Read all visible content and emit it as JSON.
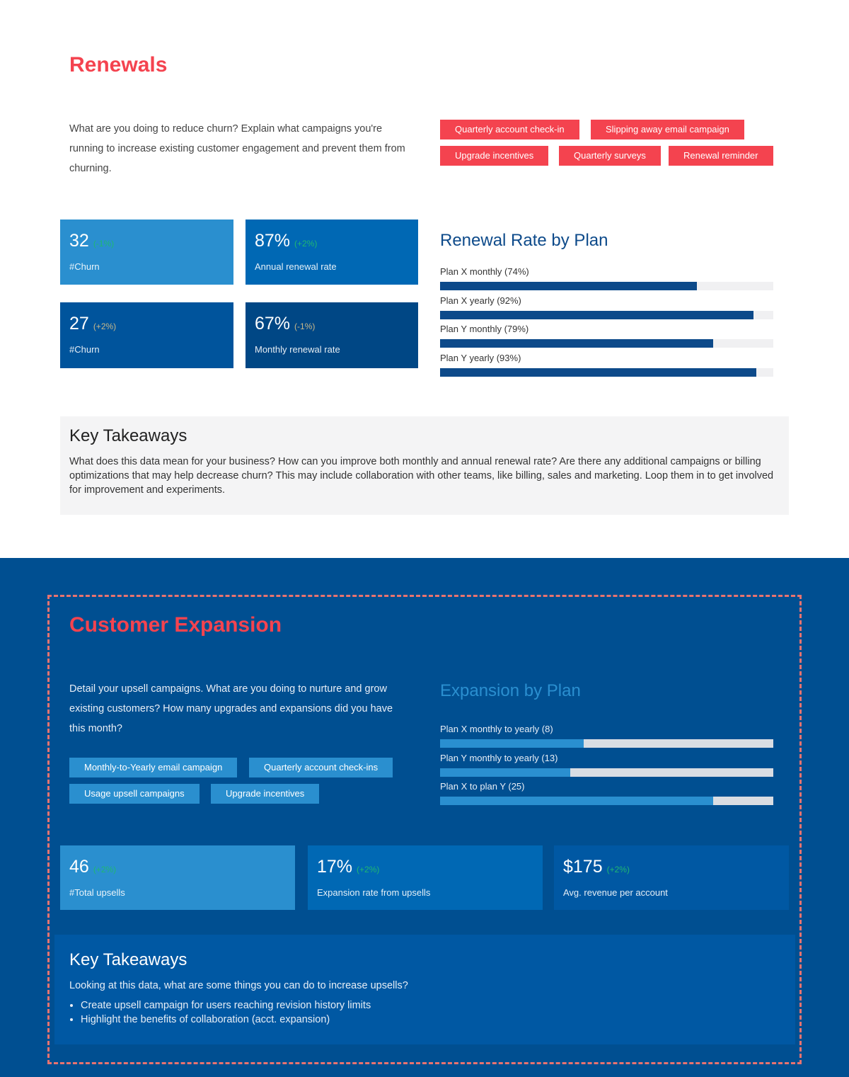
{
  "renewals": {
    "title": "Renewals",
    "intro": "What are you doing to reduce churn? Explain what campaigns you're running to increase existing customer engagement and prevent them from churning.",
    "tags": [
      "Quarterly account check-in",
      "Slipping away email campaign",
      "Upgrade incentives",
      "Quarterly surveys",
      "Renewal reminder"
    ],
    "cards": [
      {
        "value": "32",
        "delta": "(-1%)",
        "label": "#Churn",
        "color": "#2a8fcf",
        "delta_color": "#1fb872"
      },
      {
        "value": "87%",
        "delta": "(+2%)",
        "label": "Annual renewal rate",
        "color": "#0068b4",
        "delta_color": "#1fb872"
      },
      {
        "value": "27",
        "delta": "(+2%)",
        "label": "#Churn",
        "color": "#00549c",
        "delta_color": "#c9b98a"
      },
      {
        "value": "67%",
        "delta": "(-1%)",
        "label": "Monthly renewal rate",
        "color": "#004785",
        "delta_color": "#c9b98a"
      }
    ],
    "chart": {
      "title": "Renewal Rate by Plan",
      "bars": [
        {
          "label": "Plan X monthly (74%)",
          "fill": 77
        },
        {
          "label": "Plan X yearly (92%)",
          "fill": 94
        },
        {
          "label": "Plan Y monthly (79%)",
          "fill": 82
        },
        {
          "label": "Plan Y yearly (93%)",
          "fill": 95
        }
      ]
    },
    "takeaways": {
      "title": "Key Takeaways",
      "text": "What does this data mean for your business? How can you improve both monthly and annual renewal rate? Are there any additional campaigns or billing optimizations that may help decrease churn? This may include collaboration with other teams, like billing, sales and marketing. Loop them in to get involved for improvement and experiments."
    }
  },
  "expansion": {
    "title": "Customer Expansion",
    "intro": "Detail your upsell campaigns. What are you doing to nurture and grow existing customers? How many upgrades and expansions did you have this month?",
    "tags": [
      "Monthly-to-Yearly email campaign",
      "Quarterly account check-ins",
      "Usage  upsell campaigns",
      "Upgrade incentives"
    ],
    "chart": {
      "title": "Expansion by Plan",
      "bars": [
        {
          "label": "Plan X monthly to yearly (8)",
          "fill": 43
        },
        {
          "label": "Plan Y monthly to yearly (13)",
          "fill": 39
        },
        {
          "label": "Plan X to plan Y (25)",
          "fill": 82
        }
      ]
    },
    "cards": [
      {
        "value": "46",
        "delta": "(+2%)",
        "label": "#Total upsells",
        "color": "#2a8fcf"
      },
      {
        "value": "17%",
        "delta": "(+2%)",
        "label": "Expansion rate from upsells",
        "color": "#0068b4"
      },
      {
        "value": "$175",
        "delta": "(+2%)",
        "label": "Avg. revenue per account",
        "color": "#0058a3"
      }
    ],
    "takeaways": {
      "title": "Key Takeaways",
      "text": "Looking at this data, what are some things you can do to increase upsells?",
      "bullets": [
        "Create upsell campaign for users reaching revision history limits",
        "Highlight the benefits of collaboration (acct. expansion)"
      ]
    }
  },
  "colors": {
    "accent_red": "#f4434f",
    "section_blue": "#004f91",
    "bar_dark": "#0d4a8a",
    "bar_light": "#2a8fd0",
    "dashed_border": "#e8736f"
  }
}
